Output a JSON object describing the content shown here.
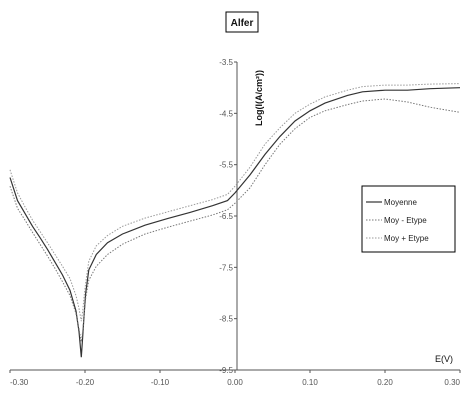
{
  "chart_data": {
    "type": "line",
    "title": "Alfer",
    "xlabel": "E(V)",
    "ylabel": "Log(I(A/cm²))",
    "xlim": [
      -0.3,
      0.3
    ],
    "ylim": [
      -9.5,
      -3.5
    ],
    "x_ticks": [
      "-0.30",
      "-0.20",
      "-0.10",
      "0.00",
      "0.10",
      "0.20",
      "0.30"
    ],
    "y_ticks": [
      "-3.5",
      "-4.5",
      "-5.5",
      "-6.5",
      "-7.5",
      "-8.5",
      "-9.5"
    ],
    "legend_position": "right",
    "grid": false,
    "series": [
      {
        "name": "Moyenne",
        "color": "#333333",
        "style": "solid",
        "x": [
          -0.3,
          -0.29,
          -0.28,
          -0.27,
          -0.26,
          -0.25,
          -0.24,
          -0.23,
          -0.22,
          -0.212,
          -0.208,
          -0.205,
          -0.203,
          -0.201,
          -0.199,
          -0.195,
          -0.185,
          -0.17,
          -0.15,
          -0.12,
          -0.09,
          -0.06,
          -0.03,
          -0.01,
          0.0,
          0.02,
          0.04,
          0.06,
          0.08,
          0.1,
          0.12,
          0.15,
          0.17,
          0.2,
          0.23,
          0.26,
          0.3
        ],
        "y": [
          -5.75,
          -6.2,
          -6.45,
          -6.7,
          -6.92,
          -7.15,
          -7.4,
          -7.65,
          -7.95,
          -8.35,
          -8.75,
          -9.25,
          -8.85,
          -8.4,
          -8.0,
          -7.55,
          -7.25,
          -7.02,
          -6.85,
          -6.68,
          -6.55,
          -6.43,
          -6.3,
          -6.2,
          -6.05,
          -5.7,
          -5.3,
          -4.95,
          -4.65,
          -4.45,
          -4.3,
          -4.15,
          -4.08,
          -4.05,
          -4.05,
          -4.02,
          -4.0
        ]
      },
      {
        "name": "Moy - Etype",
        "color": "#777777",
        "style": "dotted",
        "x": [
          -0.3,
          -0.29,
          -0.28,
          -0.27,
          -0.26,
          -0.25,
          -0.24,
          -0.23,
          -0.22,
          -0.212,
          -0.208,
          -0.205,
          -0.203,
          -0.201,
          -0.199,
          -0.195,
          -0.185,
          -0.17,
          -0.15,
          -0.12,
          -0.09,
          -0.06,
          -0.03,
          -0.01,
          0.0,
          0.02,
          0.04,
          0.06,
          0.08,
          0.1,
          0.12,
          0.15,
          0.17,
          0.2,
          0.23,
          0.26,
          0.3
        ],
        "y": [
          -5.92,
          -6.35,
          -6.58,
          -6.82,
          -7.05,
          -7.28,
          -7.52,
          -7.78,
          -8.05,
          -8.4,
          -8.7,
          -8.95,
          -8.75,
          -8.4,
          -8.1,
          -7.75,
          -7.48,
          -7.25,
          -7.05,
          -6.85,
          -6.72,
          -6.6,
          -6.48,
          -6.38,
          -6.25,
          -5.95,
          -5.5,
          -5.1,
          -4.8,
          -4.58,
          -4.45,
          -4.33,
          -4.26,
          -4.22,
          -4.28,
          -4.38,
          -4.48
        ]
      },
      {
        "name": "Moy + Etype",
        "color": "#999999",
        "style": "dotted",
        "x": [
          -0.3,
          -0.29,
          -0.28,
          -0.27,
          -0.26,
          -0.25,
          -0.24,
          -0.23,
          -0.22,
          -0.212,
          -0.208,
          -0.205,
          -0.203,
          -0.201,
          -0.199,
          -0.195,
          -0.185,
          -0.17,
          -0.15,
          -0.12,
          -0.09,
          -0.06,
          -0.03,
          -0.01,
          0.0,
          0.02,
          0.04,
          0.06,
          0.08,
          0.1,
          0.12,
          0.15,
          0.17,
          0.2,
          0.23,
          0.26,
          0.3
        ],
        "y": [
          -5.6,
          -6.05,
          -6.32,
          -6.58,
          -6.8,
          -7.02,
          -7.25,
          -7.48,
          -7.72,
          -8.05,
          -8.3,
          -8.55,
          -8.35,
          -8.05,
          -7.8,
          -7.38,
          -7.08,
          -6.88,
          -6.7,
          -6.54,
          -6.42,
          -6.3,
          -6.18,
          -6.08,
          -5.92,
          -5.55,
          -5.1,
          -4.78,
          -4.5,
          -4.32,
          -4.18,
          -4.05,
          -3.98,
          -3.95,
          -3.95,
          -3.93,
          -3.92
        ]
      }
    ]
  }
}
